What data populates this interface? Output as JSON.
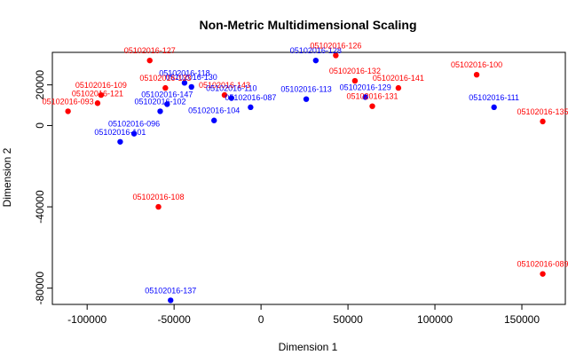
{
  "chart_data": {
    "type": "scatter",
    "title": "Non-Metric Multidimensional Scaling",
    "xlabel": "Dimension 1",
    "ylabel": "Dimension 2",
    "xlim": [
      -120000,
      175000
    ],
    "ylim": [
      -88000,
      36000
    ],
    "xticks": [
      -100000,
      -50000,
      0,
      50000,
      100000,
      150000
    ],
    "xtick_labels": [
      "-100000",
      "-50000",
      "0",
      "50000",
      "100000",
      "150000"
    ],
    "yticks": [
      -80000,
      -40000,
      0,
      20000
    ],
    "ytick_labels": [
      "-80000",
      "-40000",
      "0",
      "20000"
    ],
    "colors": {
      "red": "#ff0000",
      "blue": "#0000ff"
    },
    "points": [
      {
        "label": "05102016-127",
        "x": -64000,
        "y": 32000,
        "color": "red"
      },
      {
        "label": "05102016-128",
        "x": 31500,
        "y": 32000,
        "color": "blue"
      },
      {
        "label": "05102016-126",
        "x": 43000,
        "y": 34500,
        "color": "red"
      },
      {
        "label": "05102016-118",
        "x": -44000,
        "y": 21000,
        "color": "blue"
      },
      {
        "label": "05102016-130",
        "x": -40000,
        "y": 19000,
        "color": "blue"
      },
      {
        "label": "05102016-133",
        "x": -55000,
        "y": 18500,
        "color": "red"
      },
      {
        "label": "05102016-132",
        "x": 54000,
        "y": 22000,
        "color": "red"
      },
      {
        "label": "05102016-141",
        "x": 79000,
        "y": 18500,
        "color": "red"
      },
      {
        "label": "05102016-100",
        "x": 124000,
        "y": 25000,
        "color": "red"
      },
      {
        "label": "05102016-109",
        "x": -92000,
        "y": 15000,
        "color": "red"
      },
      {
        "label": "05102016-143",
        "x": -21000,
        "y": 15000,
        "color": "red"
      },
      {
        "label": "05102016-110",
        "x": -17000,
        "y": 13500,
        "color": "blue"
      },
      {
        "label": "05102016-113",
        "x": 26000,
        "y": 13000,
        "color": "blue"
      },
      {
        "label": "05102016-129",
        "x": 60000,
        "y": 14000,
        "color": "blue"
      },
      {
        "label": "05102016-121",
        "x": -94000,
        "y": 11000,
        "color": "red"
      },
      {
        "label": "05102016-147",
        "x": -54000,
        "y": 10500,
        "color": "blue"
      },
      {
        "label": "05102016-087",
        "x": -6000,
        "y": 9000,
        "color": "blue"
      },
      {
        "label": "05102016-131",
        "x": 64000,
        "y": 9500,
        "color": "red"
      },
      {
        "label": "05102016-093",
        "x": -111000,
        "y": 7000,
        "color": "red"
      },
      {
        "label": "05102016-102",
        "x": -58000,
        "y": 7000,
        "color": "blue"
      },
      {
        "label": "05102016-111",
        "x": 134000,
        "y": 9000,
        "color": "blue"
      },
      {
        "label": "05102016-104",
        "x": -27000,
        "y": 2500,
        "color": "blue"
      },
      {
        "label": "05102016-135",
        "x": 162000,
        "y": 2000,
        "color": "red"
      },
      {
        "label": "05102016-096",
        "x": -73000,
        "y": -4000,
        "color": "blue"
      },
      {
        "label": "05102016-101",
        "x": -81000,
        "y": -8000,
        "color": "blue"
      },
      {
        "label": "05102016-108",
        "x": -59000,
        "y": -40000,
        "color": "red"
      },
      {
        "label": "05102016-089",
        "x": 162000,
        "y": -73000,
        "color": "red"
      },
      {
        "label": "05102016-137",
        "x": -52000,
        "y": -86000,
        "color": "blue"
      }
    ]
  }
}
